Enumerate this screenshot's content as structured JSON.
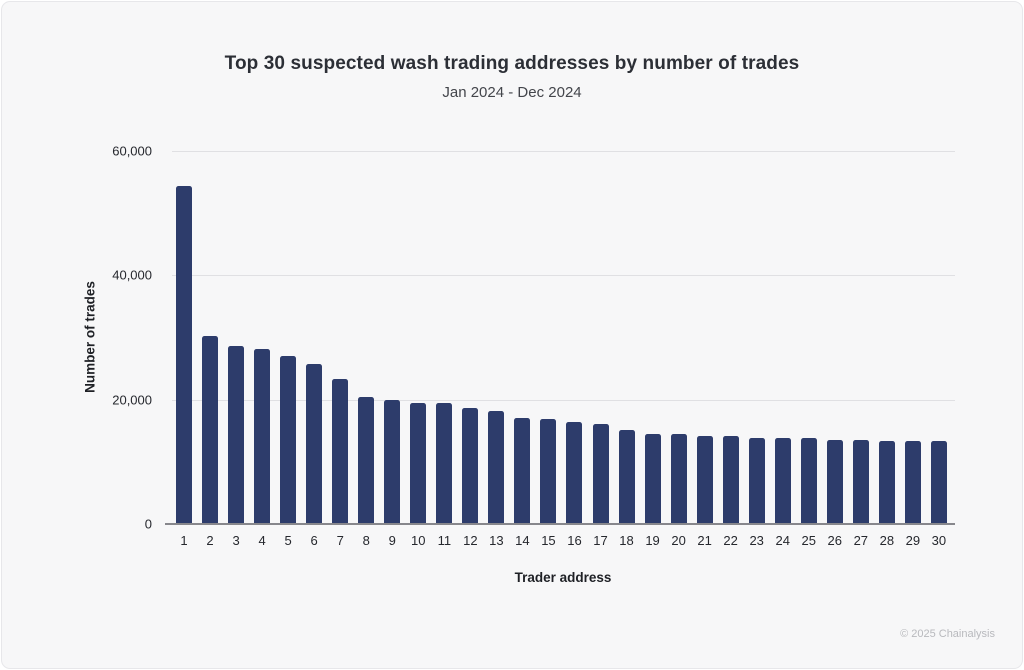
{
  "page": {
    "background_color": "#f7f7f8",
    "border_color": "#e7e7ea"
  },
  "header": {
    "title": "Top 30 suspected wash trading addresses by number of trades",
    "subtitle": "Jan 2024 - Dec 2024"
  },
  "footer": {
    "copyright": "© 2025 Chainalysis"
  },
  "chart_data": {
    "type": "bar",
    "title": "Top 30 suspected wash trading addresses by number of trades",
    "subtitle": "Jan 2024 - Dec 2024",
    "xlabel": "Trader address",
    "ylabel": "Number of trades",
    "categories": [
      "1",
      "2",
      "3",
      "4",
      "5",
      "6",
      "7",
      "8",
      "9",
      "10",
      "11",
      "12",
      "13",
      "14",
      "15",
      "16",
      "17",
      "18",
      "19",
      "20",
      "21",
      "22",
      "23",
      "24",
      "25",
      "26",
      "27",
      "28",
      "29",
      "30"
    ],
    "values": [
      54400,
      30200,
      28600,
      28200,
      27000,
      25800,
      23400,
      20500,
      20000,
      19500,
      19500,
      18700,
      18100,
      17000,
      16900,
      16400,
      16100,
      15100,
      14400,
      14400,
      14100,
      14100,
      13900,
      13900,
      13900,
      13500,
      13500,
      13300,
      13300,
      13300
    ],
    "ylim": [
      0,
      60000
    ],
    "yticks": [
      0,
      20000,
      40000,
      60000
    ],
    "ytick_labels": [
      "0",
      "20,000",
      "40,000",
      "60,000"
    ],
    "grid": "horizontal",
    "legend": "none",
    "bar_color": "#2d3c6b"
  }
}
